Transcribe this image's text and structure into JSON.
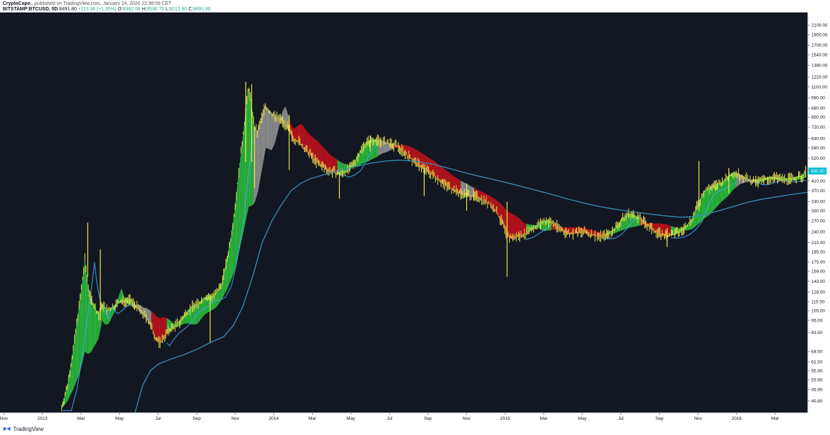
{
  "header": {
    "author": "CryptoCapo_",
    "published": "published on TradingView.com, January 24, 2020 22:38:59 CET",
    "symbol": "BITSTAMP:BTCUSD, 5D",
    "last": "8491.80",
    "change": "+113.36 (+1.35%)",
    "o_label": "O:",
    "o_val": "8382.08",
    "h_label": "H:",
    "h_val": "8530.70",
    "l_label": "L:",
    "l_val": "8212.90",
    "c_label": "C:",
    "c_val": "8491.80"
  },
  "footer": {
    "brand": "TradingView",
    "logo_icon": "tradingview-logo-icon"
  },
  "colors": {
    "background": "#131722",
    "axis_bg": "#ffffff",
    "bull": "#2ecc40",
    "bear": "#d0121b",
    "neutral": "#9e9e9e",
    "fast_ma": "#3fa9ff",
    "candle": "#f2e94e",
    "slow_ma": "#3a8fb7",
    "price_tag": "#00bcd4"
  },
  "chart_data": {
    "type": "line",
    "scale": "log",
    "x_range": [
      -1.2,
      40.7
    ],
    "y_range": [
      36,
      2400
    ],
    "x_ticks": [
      {
        "m": -1,
        "label": "Nov"
      },
      {
        "m": 1,
        "label": "2013"
      },
      {
        "m": 3,
        "label": "Mar"
      },
      {
        "m": 5,
        "label": "May"
      },
      {
        "m": 7,
        "label": "Jul"
      },
      {
        "m": 9,
        "label": "Sep"
      },
      {
        "m": 11,
        "label": "Nov"
      },
      {
        "m": 13,
        "label": "2014"
      },
      {
        "m": 15,
        "label": "Mar"
      },
      {
        "m": 17,
        "label": "May"
      },
      {
        "m": 19,
        "label": "Jul"
      },
      {
        "m": 21,
        "label": "Sep"
      },
      {
        "m": 23,
        "label": "Nov"
      },
      {
        "m": 25,
        "label": "2015"
      },
      {
        "m": 27,
        "label": "Mar"
      },
      {
        "m": 29,
        "label": "May"
      },
      {
        "m": 31,
        "label": "Jul"
      },
      {
        "m": 33,
        "label": "Sep"
      },
      {
        "m": 35,
        "label": "Nov"
      },
      {
        "m": 37,
        "label": "2016"
      },
      {
        "m": 39,
        "label": "Mar"
      }
    ],
    "y_ticks": [
      "40.80",
      "45.90",
      "50.90",
      "55.90",
      "61.50",
      "68.50",
      "83.50",
      "95.00",
      "105.00",
      "115.50",
      "128.00",
      "143.00",
      "159.00",
      "175.00",
      "195.00",
      "215.00",
      "240.00",
      "270.00",
      "300.00",
      "330.00",
      "370.00",
      "410.00",
      "460.00",
      "520.00",
      "580.00",
      "640.00",
      "720.00",
      "800.00",
      "880.00",
      "980.00",
      "1100.00",
      "1220.00",
      "1380.00",
      "1540.00",
      "1700.00",
      "1900.00",
      "2100.00"
    ],
    "last_price_label": "455.00",
    "last_price": 455,
    "price": [
      [
        2.0,
        38
      ],
      [
        2.3,
        48
      ],
      [
        2.6,
        70
      ],
      [
        2.9,
        110
      ],
      [
        3.1,
        150
      ],
      [
        3.2,
        180
      ],
      [
        3.35,
        140
      ],
      [
        3.5,
        120
      ],
      [
        3.7,
        110
      ],
      [
        3.9,
        100
      ],
      [
        4.1,
        112
      ],
      [
        4.4,
        105
      ],
      [
        4.6,
        108
      ],
      [
        4.9,
        114
      ],
      [
        5.2,
        116
      ],
      [
        5.5,
        118
      ],
      [
        5.8,
        112
      ],
      [
        6.1,
        104
      ],
      [
        6.4,
        98
      ],
      [
        6.7,
        86
      ],
      [
        6.9,
        78
      ],
      [
        7.1,
        75
      ],
      [
        7.3,
        80
      ],
      [
        7.6,
        86
      ],
      [
        7.9,
        90
      ],
      [
        8.2,
        95
      ],
      [
        8.5,
        104
      ],
      [
        8.8,
        110
      ],
      [
        9.1,
        113
      ],
      [
        9.4,
        120
      ],
      [
        9.7,
        121
      ],
      [
        10.0,
        125
      ],
      [
        10.3,
        140
      ],
      [
        10.55,
        175
      ],
      [
        10.75,
        220
      ],
      [
        10.95,
        290
      ],
      [
        11.15,
        420
      ],
      [
        11.35,
        600
      ],
      [
        11.55,
        860
      ],
      [
        11.7,
        1100
      ],
      [
        11.85,
        900
      ],
      [
        12.0,
        720
      ],
      [
        12.15,
        680
      ],
      [
        12.35,
        780
      ],
      [
        12.55,
        900
      ],
      [
        12.8,
        840
      ],
      [
        13.1,
        800
      ],
      [
        13.4,
        780
      ],
      [
        13.7,
        720
      ],
      [
        14.0,
        640
      ],
      [
        14.3,
        620
      ],
      [
        14.6,
        570
      ],
      [
        14.9,
        540
      ],
      [
        15.2,
        500
      ],
      [
        15.5,
        480
      ],
      [
        15.8,
        460
      ],
      [
        16.1,
        450
      ],
      [
        16.4,
        440
      ],
      [
        16.7,
        450
      ],
      [
        17.0,
        470
      ],
      [
        17.3,
        520
      ],
      [
        17.5,
        560
      ],
      [
        17.7,
        600
      ],
      [
        17.9,
        620
      ],
      [
        18.2,
        630
      ],
      [
        18.5,
        625
      ],
      [
        18.8,
        610
      ],
      [
        19.1,
        600
      ],
      [
        19.4,
        590
      ],
      [
        19.7,
        560
      ],
      [
        20.0,
        530
      ],
      [
        20.3,
        500
      ],
      [
        20.6,
        480
      ],
      [
        20.9,
        460
      ],
      [
        21.2,
        440
      ],
      [
        21.5,
        420
      ],
      [
        21.8,
        400
      ],
      [
        22.1,
        385
      ],
      [
        22.4,
        370
      ],
      [
        22.7,
        360
      ],
      [
        23.0,
        355
      ],
      [
        23.3,
        350
      ],
      [
        23.6,
        345
      ],
      [
        23.9,
        335
      ],
      [
        24.2,
        320
      ],
      [
        24.5,
        300
      ],
      [
        24.8,
        270
      ],
      [
        25.1,
        230
      ],
      [
        25.4,
        225
      ],
      [
        25.7,
        230
      ],
      [
        26.0,
        235
      ],
      [
        26.3,
        245
      ],
      [
        26.6,
        255
      ],
      [
        26.9,
        265
      ],
      [
        27.2,
        270
      ],
      [
        27.5,
        262
      ],
      [
        27.8,
        250
      ],
      [
        28.1,
        240
      ],
      [
        28.4,
        236
      ],
      [
        28.7,
        238
      ],
      [
        29.0,
        240
      ],
      [
        29.3,
        236
      ],
      [
        29.6,
        232
      ],
      [
        29.9,
        230
      ],
      [
        30.2,
        232
      ],
      [
        30.5,
        240
      ],
      [
        30.8,
        255
      ],
      [
        31.1,
        275
      ],
      [
        31.4,
        290
      ],
      [
        31.7,
        285
      ],
      [
        32.0,
        275
      ],
      [
        32.3,
        262
      ],
      [
        32.6,
        248
      ],
      [
        32.9,
        238
      ],
      [
        33.2,
        232
      ],
      [
        33.5,
        232
      ],
      [
        33.8,
        235
      ],
      [
        34.1,
        242
      ],
      [
        34.4,
        255
      ],
      [
        34.7,
        275
      ],
      [
        35.0,
        320
      ],
      [
        35.3,
        365
      ],
      [
        35.6,
        380
      ],
      [
        35.9,
        390
      ],
      [
        36.2,
        400
      ],
      [
        36.5,
        420
      ],
      [
        36.8,
        445
      ],
      [
        37.1,
        440
      ],
      [
        37.4,
        425
      ],
      [
        37.7,
        410
      ],
      [
        38.0,
        405
      ],
      [
        38.3,
        410
      ],
      [
        38.6,
        420
      ],
      [
        38.9,
        425
      ],
      [
        39.2,
        420
      ],
      [
        39.5,
        418
      ],
      [
        39.8,
        420
      ],
      [
        40.1,
        425
      ],
      [
        40.4,
        430
      ],
      [
        40.6,
        455
      ]
    ],
    "slow_ma": [
      [
        5.8,
        36
      ],
      [
        6.2,
        48
      ],
      [
        6.6,
        56
      ],
      [
        7.0,
        60
      ],
      [
        7.6,
        63
      ],
      [
        8.3,
        66
      ],
      [
        9.0,
        70
      ],
      [
        9.8,
        76
      ],
      [
        10.4,
        80
      ],
      [
        10.9,
        90
      ],
      [
        11.4,
        110
      ],
      [
        11.9,
        150
      ],
      [
        12.4,
        215
      ],
      [
        12.9,
        270
      ],
      [
        13.4,
        320
      ],
      [
        13.9,
        370
      ],
      [
        14.4,
        400
      ],
      [
        14.9,
        420
      ],
      [
        15.5,
        435
      ],
      [
        16.3,
        455
      ],
      [
        17.2,
        475
      ],
      [
        18.1,
        495
      ],
      [
        18.8,
        505
      ],
      [
        19.5,
        510
      ],
      [
        20.3,
        505
      ],
      [
        21.2,
        490
      ],
      [
        22.2,
        465
      ],
      [
        23.2,
        440
      ],
      [
        24.2,
        420
      ],
      [
        25.2,
        400
      ],
      [
        26.2,
        380
      ],
      [
        27.2,
        360
      ],
      [
        28.2,
        340
      ],
      [
        29.2,
        323
      ],
      [
        30.2,
        310
      ],
      [
        31.2,
        300
      ],
      [
        32.2,
        292
      ],
      [
        33.2,
        285
      ],
      [
        34.1,
        280
      ],
      [
        34.8,
        282
      ],
      [
        35.5,
        290
      ],
      [
        36.2,
        302
      ],
      [
        36.9,
        315
      ],
      [
        37.6,
        328
      ],
      [
        38.3,
        338
      ],
      [
        39.0,
        346
      ],
      [
        39.7,
        354
      ],
      [
        40.3,
        360
      ],
      [
        40.7,
        364
      ]
    ],
    "spikes": [
      [
        3.35,
        265,
        150
      ],
      [
        4.0,
        200,
        95
      ],
      [
        9.7,
        125,
        75
      ],
      [
        11.55,
        1160,
        500
      ],
      [
        11.85,
        1130,
        500
      ],
      [
        12.0,
        720,
        380
      ],
      [
        13.8,
        820,
        460
      ],
      [
        16.4,
        450,
        340
      ],
      [
        18.0,
        660,
        560
      ],
      [
        20.8,
        470,
        350
      ],
      [
        23.0,
        400,
        300
      ],
      [
        25.1,
        330,
        150
      ],
      [
        33.4,
        250,
        205
      ],
      [
        35.05,
        505,
        300
      ],
      [
        36.6,
        470,
        360
      ]
    ],
    "regime": [
      {
        "from": 2.0,
        "to": 5.6,
        "trend": "bull"
      },
      {
        "from": 5.6,
        "to": 6.6,
        "trend": "neutral"
      },
      {
        "from": 6.6,
        "to": 7.4,
        "trend": "bear"
      },
      {
        "from": 7.4,
        "to": 11.95,
        "trend": "bull"
      },
      {
        "from": 11.95,
        "to": 13.8,
        "trend": "neutral"
      },
      {
        "from": 13.8,
        "to": 16.3,
        "trend": "bear"
      },
      {
        "from": 16.3,
        "to": 18.4,
        "trend": "bull"
      },
      {
        "from": 18.4,
        "to": 19.2,
        "trend": "neutral"
      },
      {
        "from": 19.2,
        "to": 22.7,
        "trend": "bear"
      },
      {
        "from": 22.7,
        "to": 23.4,
        "trend": "neutral"
      },
      {
        "from": 23.4,
        "to": 26.1,
        "trend": "bear"
      },
      {
        "from": 26.1,
        "to": 27.4,
        "trend": "bull"
      },
      {
        "from": 27.4,
        "to": 30.2,
        "trend": "bear"
      },
      {
        "from": 30.2,
        "to": 32.0,
        "trend": "bull"
      },
      {
        "from": 32.0,
        "to": 33.6,
        "trend": "bear"
      },
      {
        "from": 33.6,
        "to": 37.0,
        "trend": "bull"
      },
      {
        "from": 37.0,
        "to": 38.0,
        "trend": "neutral"
      },
      {
        "from": 38.0,
        "to": 40.7,
        "trend": "bull"
      }
    ]
  }
}
